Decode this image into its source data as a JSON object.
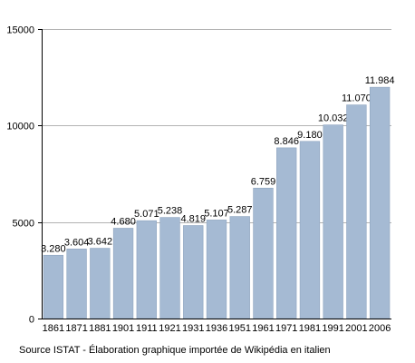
{
  "chart_data": {
    "type": "bar",
    "categories": [
      "1861",
      "1871",
      "1881",
      "1901",
      "1911",
      "1921",
      "1931",
      "1936",
      "1951",
      "1961",
      "1971",
      "1981",
      "1991",
      "2001",
      "2006"
    ],
    "values": [
      3280,
      3604,
      3642,
      4680,
      5071,
      5238,
      4819,
      5107,
      5287,
      6759,
      8846,
      9180,
      10032,
      11070,
      11984
    ],
    "value_labels": [
      "3.280",
      "3.604",
      "3.642",
      "4.680",
      "5.071",
      "5.238",
      "4.819",
      "5.107",
      "5.287",
      "6.759",
      "8.846",
      "9.180",
      "10.032",
      "11.070",
      "11.984"
    ],
    "y_ticks": [
      0,
      5000,
      10000,
      15000
    ],
    "y_tick_labels": [
      "0",
      "5000",
      "10000",
      "15000"
    ],
    "ylim": [
      0,
      15000
    ],
    "grid": true,
    "legend": "none",
    "title": "",
    "xlabel": "",
    "ylabel": "",
    "bar_color": "#a5bad3",
    "bar_edge_color": "#8ea4bf",
    "grid_color": "#b3b3b3"
  },
  "source_note": "Source ISTAT - Élaboration graphique importée de Wikipédia en italien"
}
